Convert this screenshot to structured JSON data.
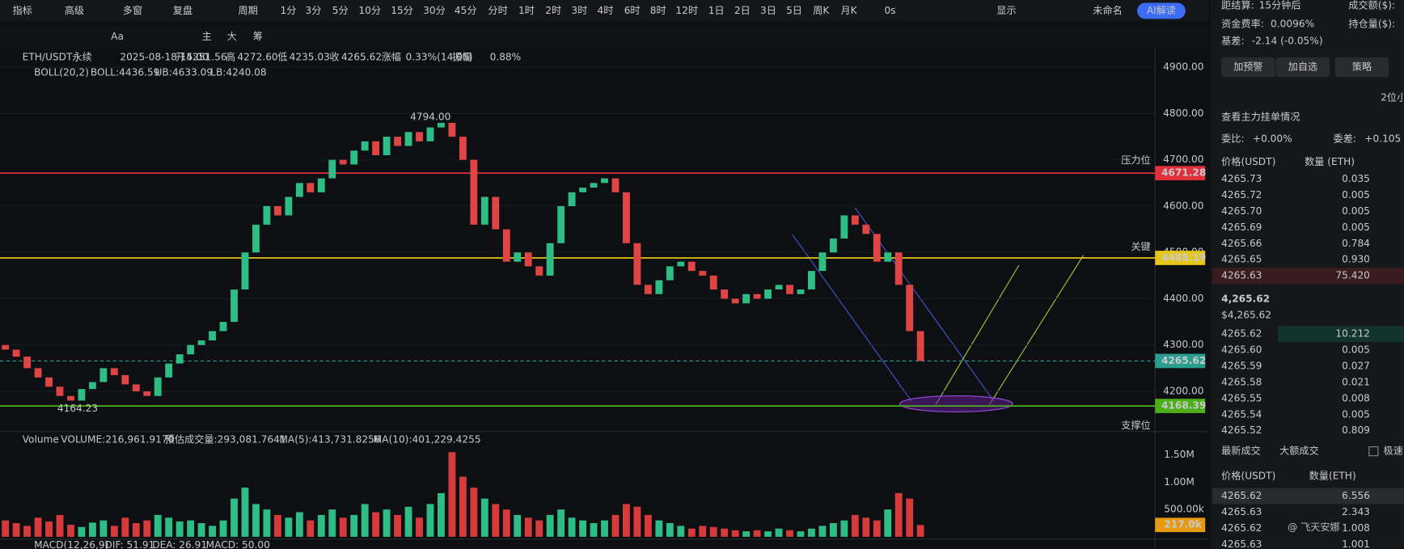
{
  "toolbar": {
    "items": [
      "指标",
      "高级",
      "多窗",
      "复盘",
      "周期",
      "1分",
      "3分",
      "5分",
      "10分",
      "15分",
      "30分",
      "45分",
      "分时",
      "1时",
      "2时",
      "3时",
      "4时",
      "6时",
      "8时",
      "12时",
      "1日",
      "2日",
      "3日",
      "5日",
      "周K",
      "月K",
      "0s",
      "显示",
      "未命名",
      "AI解读"
    ]
  },
  "toolbar2": {
    "items": [
      "Aa",
      "主",
      "大",
      "筹"
    ]
  },
  "legend": {
    "symbol": "ETH/USDT永续",
    "time": "2025-08-18 15:00",
    "fields": [
      "开",
      "4251.56",
      "高",
      "4272.60",
      "低",
      "4235.03",
      "收",
      "4265.62",
      "涨幅",
      "0.33%(14.05)",
      "振幅",
      "0.88%"
    ],
    "boll": "BOLL(20,2)",
    "boll_mid": "BOLL:4436.59",
    "boll_ub": "UB:4633.09",
    "boll_lb": "LB:4240.08"
  },
  "chart": {
    "ylim": [
      4130,
      4930
    ],
    "yticks": [
      {
        "value": 4900,
        "label": "4900.00"
      },
      {
        "value": 4800,
        "label": "4800.00"
      },
      {
        "value": 4700,
        "label": "4700.00"
      },
      {
        "value": 4600,
        "label": "4600.00"
      },
      {
        "value": 4500,
        "label": "4500.00"
      },
      {
        "value": 4400,
        "label": "4400.00"
      },
      {
        "value": 4300,
        "label": "4300.00"
      },
      {
        "value": 4200,
        "label": "4200.00"
      }
    ],
    "high_mark": {
      "value": 4794,
      "label": "4794.00"
    },
    "low_mark": {
      "value": 4164.23,
      "label": "4164.23"
    },
    "levels": [
      {
        "value": 4671.28,
        "color": "#e0303a",
        "name": "压力位"
      },
      {
        "value": 4488.19,
        "color": "#e6c619",
        "name": "关键"
      },
      {
        "value": 4265.62,
        "color": "#2a9d8f"
      },
      {
        "value": 4168.39,
        "color": "#4caf1a",
        "name": "支撑位"
      }
    ],
    "candles": [
      [
        4300,
        4290
      ],
      [
        4290,
        4275
      ],
      [
        4275,
        4250
      ],
      [
        4250,
        4230
      ],
      [
        4230,
        4210
      ],
      [
        4210,
        4190
      ],
      [
        4190,
        4180
      ],
      [
        4180,
        4205
      ],
      [
        4205,
        4220
      ],
      [
        4220,
        4250
      ],
      [
        4250,
        4235
      ],
      [
        4235,
        4215
      ],
      [
        4215,
        4200
      ],
      [
        4200,
        4190
      ],
      [
        4190,
        4230
      ],
      [
        4230,
        4260
      ],
      [
        4260,
        4280
      ],
      [
        4280,
        4300
      ],
      [
        4300,
        4310
      ],
      [
        4310,
        4330
      ],
      [
        4330,
        4350
      ],
      [
        4350,
        4420
      ],
      [
        4420,
        4500
      ],
      [
        4500,
        4560
      ],
      [
        4560,
        4600
      ],
      [
        4600,
        4580
      ],
      [
        4580,
        4620
      ],
      [
        4620,
        4650
      ],
      [
        4650,
        4630
      ],
      [
        4630,
        4660
      ],
      [
        4660,
        4700
      ],
      [
        4700,
        4690
      ],
      [
        4690,
        4720
      ],
      [
        4720,
        4740
      ],
      [
        4740,
        4710
      ],
      [
        4710,
        4750
      ],
      [
        4750,
        4730
      ],
      [
        4730,
        4760
      ],
      [
        4760,
        4740
      ],
      [
        4740,
        4770
      ],
      [
        4770,
        4780
      ],
      [
        4780,
        4750
      ],
      [
        4750,
        4700
      ],
      [
        4700,
        4560
      ],
      [
        4560,
        4620
      ],
      [
        4620,
        4550
      ],
      [
        4550,
        4480
      ],
      [
        4480,
        4500
      ],
      [
        4500,
        4470
      ],
      [
        4470,
        4450
      ],
      [
        4450,
        4520
      ],
      [
        4520,
        4600
      ],
      [
        4600,
        4630
      ],
      [
        4630,
        4640
      ],
      [
        4640,
        4650
      ],
      [
        4650,
        4660
      ],
      [
        4660,
        4630
      ],
      [
        4630,
        4520
      ],
      [
        4520,
        4430
      ],
      [
        4430,
        4410
      ],
      [
        4410,
        4440
      ],
      [
        4440,
        4470
      ],
      [
        4470,
        4480
      ],
      [
        4480,
        4460
      ],
      [
        4460,
        4450
      ],
      [
        4450,
        4420
      ],
      [
        4420,
        4400
      ],
      [
        4400,
        4390
      ],
      [
        4390,
        4410
      ],
      [
        4410,
        4400
      ],
      [
        4400,
        4420
      ],
      [
        4420,
        4430
      ],
      [
        4430,
        4410
      ],
      [
        4410,
        4420
      ],
      [
        4420,
        4460
      ],
      [
        4460,
        4500
      ],
      [
        4500,
        4530
      ],
      [
        4530,
        4580
      ],
      [
        4580,
        4560
      ],
      [
        4560,
        4540
      ],
      [
        4540,
        4480
      ],
      [
        4480,
        4500
      ],
      [
        4500,
        4430
      ],
      [
        4430,
        4330
      ],
      [
        4330,
        4265.62
      ]
    ]
  },
  "volume": {
    "title": "Volume",
    "volume": "VOLUME:216,961.9170",
    "estimate": "预估成交量:293,081.7641",
    "ma5": "MA(5):413,731.8256",
    "ma10": "MA(10):401,229.4255",
    "yticks": [
      {
        "value": 1500000,
        "label": "1.50M"
      },
      {
        "value": 1000000,
        "label": "1.00M"
      },
      {
        "value": 500000,
        "label": "500.00k"
      }
    ],
    "current": {
      "value": 217000,
      "label": "217.0k"
    },
    "values": [
      300000,
      250000,
      200000,
      350000,
      280000,
      400000,
      220000,
      180000,
      260000,
      300000,
      200000,
      350000,
      250000,
      300000,
      400000,
      350000,
      280000,
      300000,
      250000,
      200000,
      300000,
      700000,
      900000,
      600000,
      500000,
      400000,
      350000,
      450000,
      300000,
      400000,
      500000,
      350000,
      400000,
      600000,
      450000,
      500000,
      400000,
      550000,
      350000,
      600000,
      800000,
      1550000,
      1100000,
      900000,
      700000,
      600000,
      500000,
      400000,
      350000,
      300000,
      400000,
      500000,
      350000,
      300000,
      250000,
      300000,
      400000,
      600000,
      550000,
      400000,
      300000,
      250000,
      200000,
      150000,
      200000,
      180000,
      150000,
      120000,
      100000,
      120000,
      100000,
      150000,
      120000,
      100000,
      150000,
      200000,
      250000,
      300000,
      400000,
      350000,
      300000,
      500000,
      800000,
      700000,
      217000
    ]
  },
  "macd": {
    "title": "MACD(12,26,9)",
    "dif": "DIF: 51.91",
    "dea": "DEA: 26.91",
    "macd": "MACD: 50.00"
  },
  "panel": {
    "settle": "距结算:",
    "settle_val": "15分钟后",
    "turnover": "成交额($):",
    "funding": "资金费率:",
    "funding_val": "0.0096%",
    "oi": "持仓量($):",
    "basis": "基差:",
    "basis_val": "-2.14 (-0.05%)",
    "buttons": [
      "加预警",
      "加自选",
      "策略"
    ],
    "precision": "2位小",
    "depth": "查看主力挂单情况",
    "ratio": "委比:",
    "ratio_val": "+0.00%",
    "diff": "委差:",
    "diff_val": "+0.105",
    "header": [
      "价格(USDT)",
      "数量 (ETH)"
    ],
    "asks": [
      [
        "4265.73",
        "0.035"
      ],
      [
        "4265.72",
        "0.005"
      ],
      [
        "4265.70",
        "0.005"
      ],
      [
        "4265.69",
        "0.005"
      ],
      [
        "4265.66",
        "0.784"
      ],
      [
        "4265.65",
        "0.930"
      ],
      [
        "4265.63",
        "75.420"
      ]
    ],
    "last": "4,265.62",
    "last_usd": "$4,265.62",
    "bids": [
      [
        "4265.62",
        "10.212"
      ],
      [
        "4265.60",
        "0.005"
      ],
      [
        "4265.59",
        "0.027"
      ],
      [
        "4265.58",
        "0.021"
      ],
      [
        "4265.55",
        "0.008"
      ],
      [
        "4265.54",
        "0.005"
      ],
      [
        "4265.52",
        "0.809"
      ]
    ],
    "tabs": [
      "最新成交",
      "大额成交",
      "极速"
    ],
    "trade_header": [
      "价格(USDT)",
      "数量(ETH)"
    ],
    "trades": [
      [
        "4265.62",
        "6.556"
      ],
      [
        "4265.63",
        "2.343"
      ],
      [
        "4265.62",
        "1.008"
      ],
      [
        "4265.63",
        "1.001"
      ]
    ]
  },
  "watermark": "@ 飞天安娜"
}
